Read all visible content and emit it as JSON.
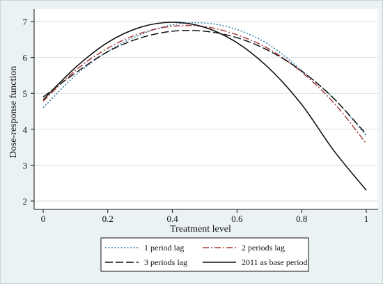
{
  "chart_data": {
    "type": "line",
    "xlabel": "Treatment level",
    "ylabel": "Dose-response function",
    "xlim": [
      0,
      1
    ],
    "ylim": [
      2,
      7
    ],
    "x_ticks": [
      "0",
      "0.2",
      "0.4",
      "0.6",
      "0.8",
      "1"
    ],
    "y_ticks": [
      "2",
      "3",
      "4",
      "5",
      "6",
      "7"
    ],
    "grid": "horizontal",
    "legend_position": "bottom",
    "x": [
      0,
      0.1,
      0.2,
      0.3,
      0.4,
      0.5,
      0.6,
      0.7,
      0.8,
      0.9,
      1.0
    ],
    "series": [
      {
        "name": "1 period lag",
        "style": "dotted",
        "color": "#2e7aa3",
        "values": [
          4.6,
          5.5,
          6.17,
          6.63,
          6.91,
          6.96,
          6.78,
          6.35,
          5.64,
          4.86,
          3.82
        ]
      },
      {
        "name": "2 periods lag",
        "style": "dash-dot",
        "color": "#a83a3a",
        "values": [
          4.78,
          5.64,
          6.26,
          6.67,
          6.87,
          6.86,
          6.63,
          6.23,
          5.59,
          4.73,
          3.6
        ]
      },
      {
        "name": "3 periods lag",
        "style": "long-dash",
        "color": "#111111",
        "values": [
          4.9,
          5.57,
          6.16,
          6.54,
          6.73,
          6.73,
          6.55,
          6.18,
          5.62,
          4.85,
          3.86
        ]
      },
      {
        "name": "2011 as base period",
        "style": "solid",
        "color": "#111111",
        "values": [
          4.82,
          5.72,
          6.42,
          6.84,
          6.98,
          6.84,
          6.41,
          5.69,
          4.69,
          3.4,
          2.3
        ]
      }
    ]
  },
  "colors": {
    "background": "#eaf2f3",
    "plot_area": "#ffffff",
    "grid": "#d6e1e3"
  }
}
